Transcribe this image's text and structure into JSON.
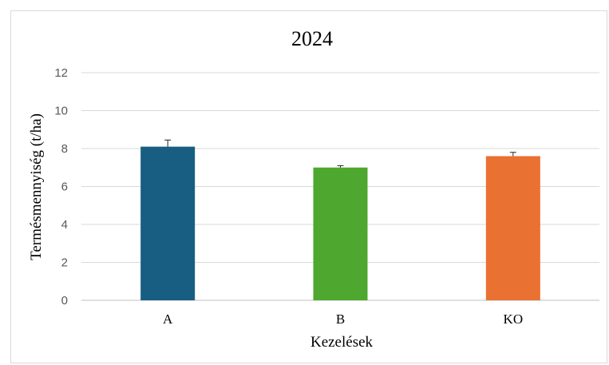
{
  "chart_data": {
    "type": "bar",
    "title": "2024",
    "xlabel": "Kezelések",
    "ylabel": "Termésmennyiség  (t/ha)",
    "categories": [
      "A",
      "B",
      "KO"
    ],
    "values": [
      8.1,
      7.0,
      7.6
    ],
    "error": [
      0.35,
      0.1,
      0.2
    ],
    "colors": [
      "#175e82",
      "#4ea72e",
      "#e97132"
    ],
    "ylim": [
      0,
      12
    ],
    "yticks": [
      "0",
      "2",
      "4",
      "6",
      "8",
      "10",
      "12"
    ],
    "grid": true,
    "legend": "none"
  }
}
